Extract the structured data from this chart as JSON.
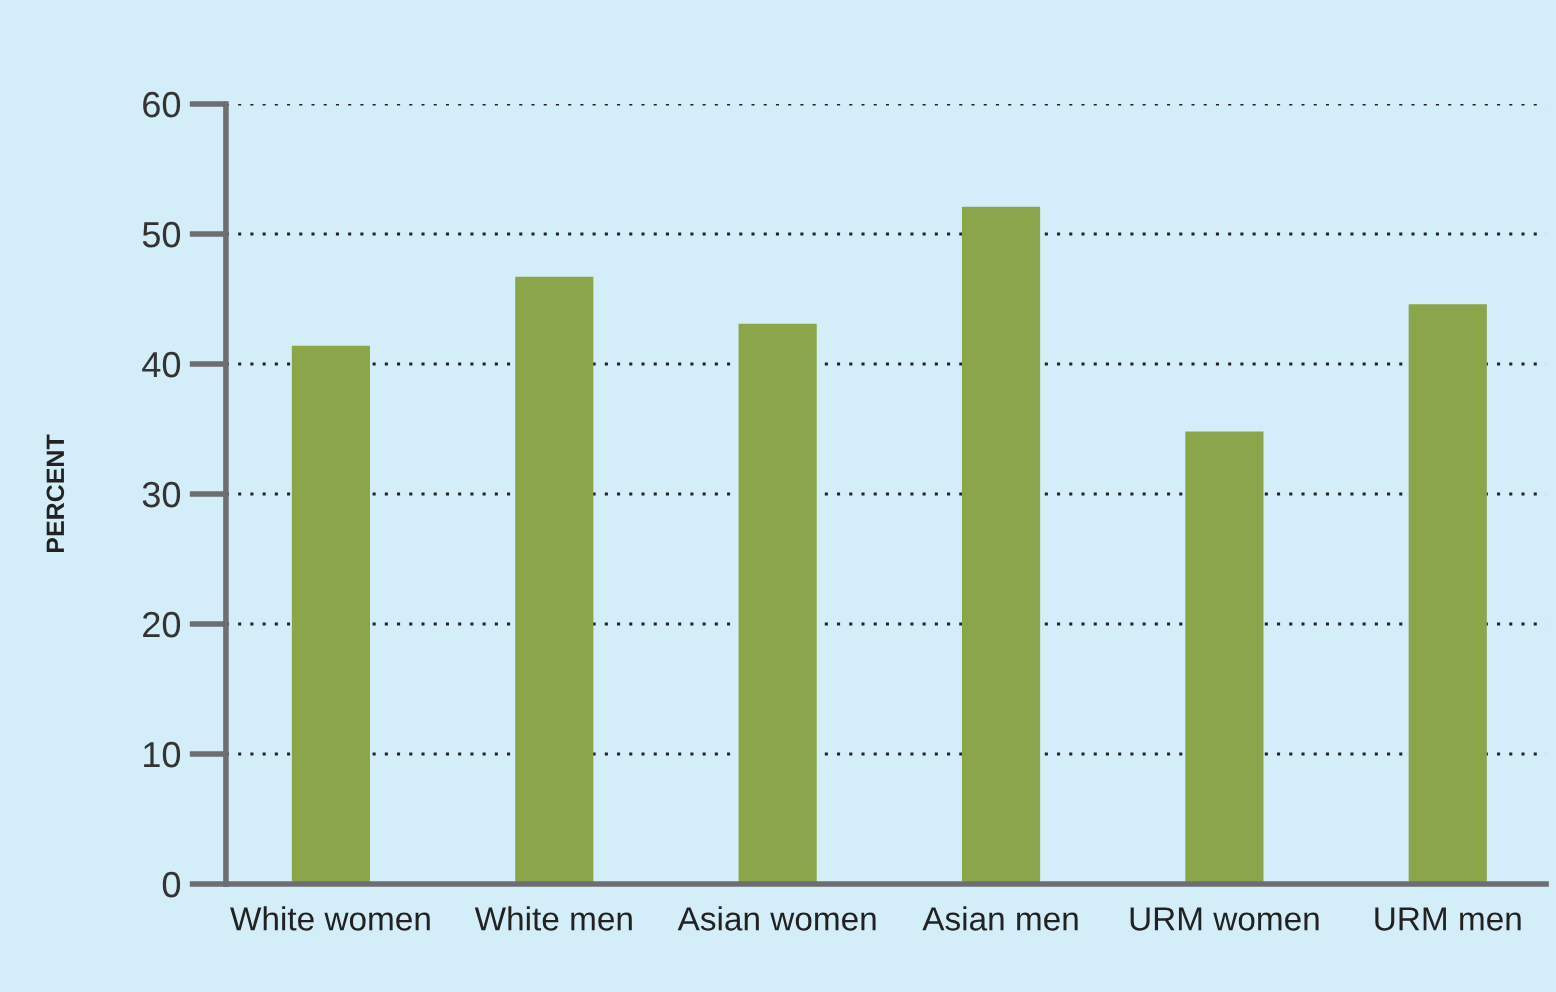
{
  "chart_data": {
    "type": "bar",
    "ylabel": "PERCENT",
    "categories": [
      "White women",
      "White men",
      "Asian women",
      "Asian men",
      "URM women",
      "URM men"
    ],
    "values": [
      41.4,
      46.7,
      43.1,
      52.1,
      34.8,
      44.6
    ],
    "color": "#8ba64a",
    "ylim": [
      0,
      60
    ],
    "yticks": [
      0,
      10,
      20,
      30,
      40,
      50,
      60
    ],
    "grid": "y"
  }
}
